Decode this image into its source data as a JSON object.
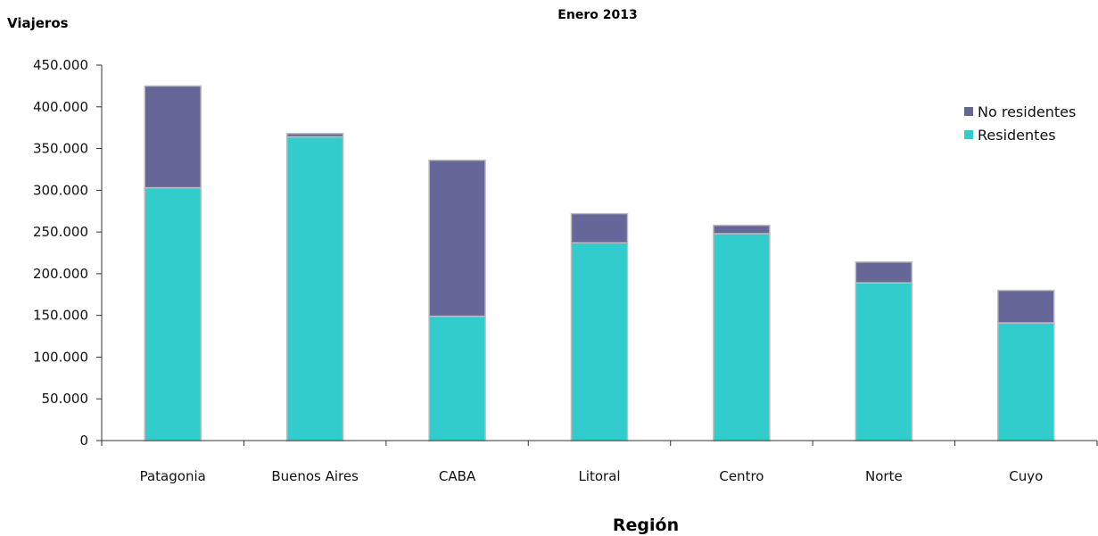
{
  "chart_data": {
    "type": "bar",
    "stacked": true,
    "title": "Enero 2013",
    "ylabel": "Viajeros",
    "xlabel": "Región",
    "categories": [
      "Patagonia",
      "Buenos Aires",
      "CABA",
      "Litoral",
      "Centro",
      "Norte",
      "Cuyo"
    ],
    "series": [
      {
        "name": "Residentes",
        "color": "#33CCCC",
        "values": [
          303000,
          364000,
          149000,
          237000,
          248000,
          189000,
          141000
        ]
      },
      {
        "name": "No residentes",
        "color": "#666699",
        "values": [
          122000,
          4000,
          187000,
          35000,
          10000,
          25000,
          39000
        ]
      }
    ],
    "ylim": [
      0,
      450000
    ],
    "yticks": [
      0,
      50000,
      100000,
      150000,
      200000,
      250000,
      300000,
      350000,
      400000,
      450000
    ],
    "ytick_labels": [
      "0",
      "50.000",
      "100.000",
      "150.000",
      "200.000",
      "250.000",
      "300.000",
      "350.000",
      "400.000",
      "450.000"
    ],
    "legend_position": "top-right",
    "grid": false
  }
}
